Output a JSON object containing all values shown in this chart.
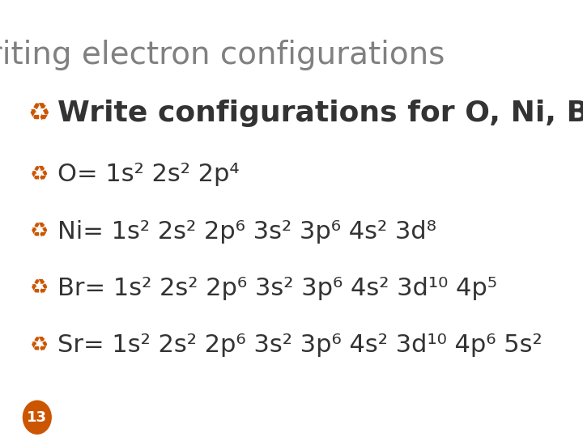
{
  "title": "Writing electron configurations",
  "title_color": "#808080",
  "title_fontsize": 28,
  "background_color": "#ffffff",
  "bullet_color": "#cc5500",
  "text_color": "#333333",
  "bullet_symbol": "∞",
  "slide_number": "13",
  "slide_num_bg": "#cc5500",
  "slide_num_color": "#ffffff",
  "lines": [
    {
      "indent": 0,
      "label": "Write configurations for O, Ni, Br, Sr",
      "fontsize": 26,
      "bold": true
    },
    {
      "indent": 1,
      "label": "O= 1s² 2s² 2p⁴",
      "fontsize": 22,
      "bold": false
    },
    {
      "indent": 1,
      "label": "Ni= 1s² 2s² 2p⁶ 3s² 3p⁶ 4s² 3d⁸",
      "fontsize": 22,
      "bold": false
    },
    {
      "indent": 1,
      "label": "Br= 1s² 2s² 2p⁶ 3s² 3p⁶ 4s² 3d¹⁰ 4p⁵",
      "fontsize": 22,
      "bold": false
    },
    {
      "indent": 1,
      "label": "Sr= 1s² 2s² 2p⁶ 3s² 3p⁶ 4s² 3d¹⁰ 4p⁶ 5s²",
      "fontsize": 22,
      "bold": false
    }
  ]
}
